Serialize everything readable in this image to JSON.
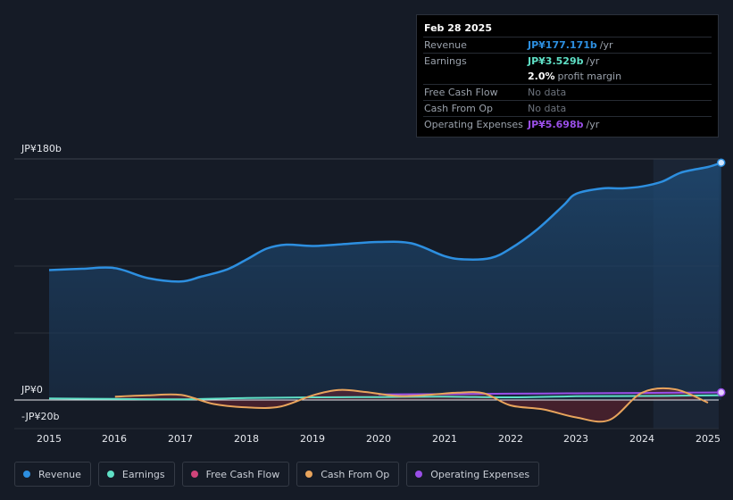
{
  "chart_data": {
    "type": "area",
    "title": "",
    "ylim": [
      -20,
      180
    ],
    "y_tick_labels": [
      "JP¥180b",
      "JP¥0",
      "-JP¥20b"
    ],
    "x_tick_labels": [
      "2015",
      "2016",
      "2017",
      "2018",
      "2019",
      "2020",
      "2021",
      "2022",
      "2023",
      "2024",
      "2025"
    ],
    "series": [
      {
        "name": "Revenue",
        "color": "#2d8fe0",
        "x": [
          2015.0,
          2015.5,
          2016.0,
          2016.5,
          2017.0,
          2017.3,
          2017.7,
          2018.0,
          2018.3,
          2018.6,
          2019.0,
          2019.5,
          2020.0,
          2020.5,
          2021.0,
          2021.3,
          2021.7,
          2022.0,
          2022.4,
          2022.8,
          2023.0,
          2023.4,
          2023.7,
          2024.0,
          2024.3,
          2024.6,
          2025.0,
          2025.2
        ],
        "values": [
          97,
          98,
          98.5,
          91,
          88.5,
          92,
          97.5,
          105,
          113,
          116,
          115,
          116.5,
          118,
          117,
          107.5,
          105,
          106,
          113,
          127,
          145,
          154,
          158,
          158,
          159.5,
          163,
          170,
          174,
          177.2
        ]
      },
      {
        "name": "Earnings",
        "color": "#5fe0c6",
        "x": [
          2015.0,
          2016.0,
          2017.0,
          2018.0,
          2019.0,
          2020.0,
          2021.0,
          2022.0,
          2023.0,
          2024.0,
          2025.0,
          2025.2
        ],
        "values": [
          1.2,
          0.8,
          0.5,
          1.5,
          2.0,
          2.2,
          2.5,
          2.0,
          2.8,
          3.0,
          3.4,
          3.5
        ]
      },
      {
        "name": "Free Cash Flow",
        "color": "#d0447a",
        "x": [],
        "values": []
      },
      {
        "name": "Cash From Op",
        "color": "#e8a45c",
        "x": [
          2016.0,
          2016.5,
          2017.0,
          2017.5,
          2018.0,
          2018.5,
          2019.0,
          2019.4,
          2019.8,
          2020.3,
          2020.8,
          2021.2,
          2021.6,
          2022.0,
          2022.5,
          2023.0,
          2023.5,
          2024.0,
          2024.5,
          2025.0
        ],
        "values": [
          2.5,
          3.5,
          3.8,
          -3,
          -5.5,
          -5,
          3.5,
          7.5,
          6.0,
          3.0,
          4.0,
          5.5,
          5.0,
          -4,
          -7,
          -13,
          -15,
          5.5,
          8,
          -2
        ]
      },
      {
        "name": "Operating Expenses",
        "color": "#9a4fe8",
        "x": [
          2020.0,
          2021.0,
          2022.0,
          2023.0,
          2024.0,
          2025.0,
          2025.2
        ],
        "values": [
          4.2,
          4.4,
          4.7,
          5.0,
          5.3,
          5.6,
          5.698
        ]
      }
    ],
    "highlight_start": 2024.17
  },
  "tooltip": {
    "date": "Feb 28 2025",
    "rows": [
      {
        "label": "Revenue",
        "value": "JP¥177.171b",
        "unit": "/yr",
        "color": "#2d8fe0"
      },
      {
        "label": "Earnings",
        "value": "JP¥3.529b",
        "unit": "/yr",
        "color": "#5fe0c6"
      },
      {
        "label": "",
        "value": "2.0%",
        "unit": "profit margin",
        "color": "#ffffff"
      },
      {
        "label": "Free Cash Flow",
        "value": "No data",
        "unit": "",
        "color": "#6c727c"
      },
      {
        "label": "Cash From Op",
        "value": "No data",
        "unit": "",
        "color": "#6c727c"
      },
      {
        "label": "Operating Expenses",
        "value": "JP¥5.698b",
        "unit": "/yr",
        "color": "#9a4fe8"
      }
    ]
  },
  "legend": [
    {
      "label": "Revenue",
      "color": "#2d8fe0"
    },
    {
      "label": "Earnings",
      "color": "#5fe0c6"
    },
    {
      "label": "Free Cash Flow",
      "color": "#d0447a"
    },
    {
      "label": "Cash From Op",
      "color": "#e8a45c"
    },
    {
      "label": "Operating Expenses",
      "color": "#9a4fe8"
    }
  ]
}
